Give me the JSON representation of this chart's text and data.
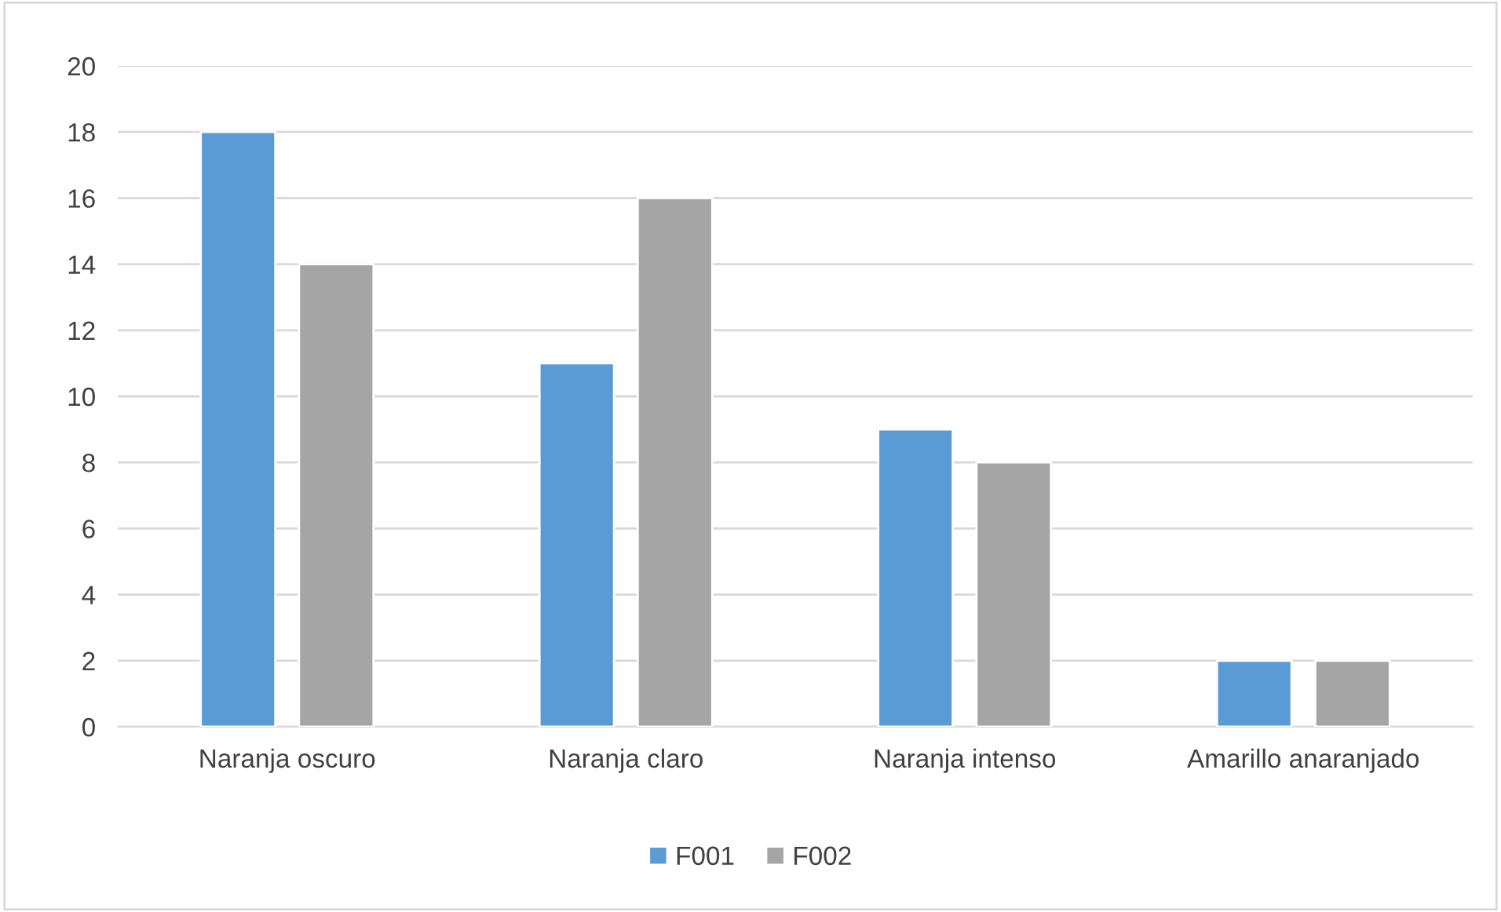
{
  "chart_data": {
    "type": "bar",
    "categories": [
      "Naranja oscuro",
      "Naranja claro",
      "Naranja intenso",
      "Amarillo anaranjado"
    ],
    "series": [
      {
        "name": "F001",
        "color": "#5b9bd5",
        "values": [
          18,
          11,
          9,
          2
        ]
      },
      {
        "name": "F002",
        "color": "#a5a5a5",
        "values": [
          14,
          16,
          8,
          2
        ]
      }
    ],
    "ylim": [
      0,
      20
    ],
    "yticks": [
      0,
      2,
      4,
      6,
      8,
      10,
      12,
      14,
      16,
      18,
      20
    ],
    "grid": "y",
    "legend": "bottom"
  }
}
